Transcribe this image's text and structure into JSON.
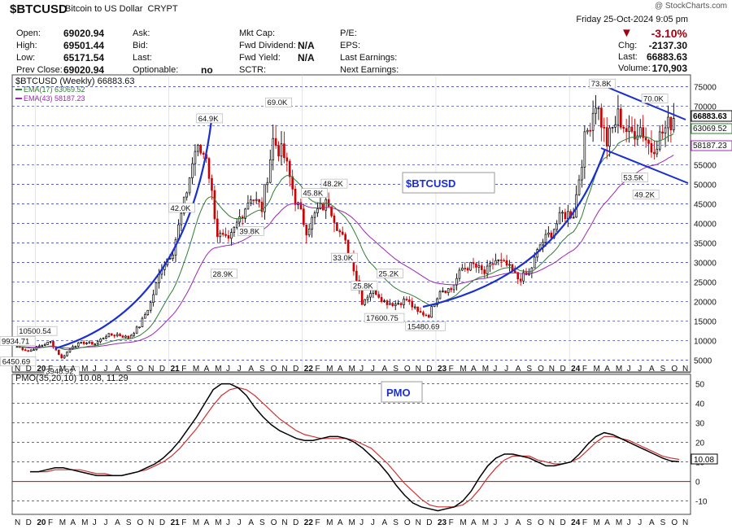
{
  "header": {
    "symbol": "$BTCUSD",
    "description": "Bitcoin to US Dollar",
    "exchange": "CRYPT",
    "brand": "@ StockCharts.com",
    "date": "Friday  25-Oct-2024  9:05 pm",
    "pct_change": "-3.10%",
    "chg_label": "Chg:",
    "chg": "-2137.30",
    "last_label": "Last:",
    "last": "66883.63",
    "volume_label": "Volume:",
    "volume": "170,903"
  },
  "info": {
    "open_label": "Open:",
    "open": "69020.94",
    "high_label": "High:",
    "high": "69501.44",
    "low_label": "Low:",
    "low": "65171.54",
    "prev_label": "Prev Close:",
    "prev": "69020.94",
    "ask_label": "Ask:",
    "bid_label": "Bid:",
    "lastq_label": "Last:",
    "optionable_label": "Optionable:",
    "optionable": "no",
    "mktcap_label": "Mkt Cap:",
    "fwddiv_label": "Fwd Dividend:",
    "fwddiv": "N/A",
    "fwdyield_label": "Fwd Yield:",
    "fwdyield": "N/A",
    "sctr_label": "SCTR:",
    "pe_label": "P/E:",
    "eps_label": "EPS:",
    "lastearn_label": "Last Earnings:",
    "nextearn_label": "Next Earnings:"
  },
  "colors": {
    "up": "#000000",
    "down": "#cc0000",
    "ema17": "#2e7d32",
    "ema43": "#9c27b0",
    "pattern": "#1a2fcf",
    "neg": "#a00010"
  },
  "chart_data": [
    {
      "type": "candlestick",
      "title": "$BTCUSD (Weekly) 66883.63",
      "watermark": "$BTCUSD",
      "y_axis_ticks": [
        5000,
        10000,
        15000,
        20000,
        25000,
        30000,
        35000,
        40000,
        45000,
        50000,
        55000,
        60000,
        65000,
        70000,
        75000
      ],
      "ylim": [
        2000,
        78000
      ],
      "x_labels": [
        "N",
        "D",
        "20",
        "F",
        "M",
        "A",
        "M",
        "J",
        "J",
        "A",
        "S",
        "O",
        "N",
        "D",
        "21",
        "F",
        "M",
        "A",
        "M",
        "J",
        "J",
        "A",
        "S",
        "O",
        "N",
        "D",
        "22",
        "F",
        "M",
        "A",
        "M",
        "J",
        "J",
        "A",
        "S",
        "O",
        "N",
        "D",
        "23",
        "F",
        "M",
        "A",
        "M",
        "J",
        "J",
        "A",
        "S",
        "O",
        "N",
        "D",
        "24",
        "F",
        "M",
        "A",
        "M",
        "J",
        "J",
        "A",
        "S",
        "O",
        "N"
      ],
      "weekly_close_path": [
        [
          "2019-11",
          8500
        ],
        [
          "2019-12",
          7300
        ],
        [
          "2020-01",
          8600
        ],
        [
          "2020-02",
          9700
        ],
        [
          "2020-03",
          5500
        ],
        [
          "2020-04",
          8700
        ],
        [
          "2020-05",
          9500
        ],
        [
          "2020-06",
          9200
        ],
        [
          "2020-07",
          11300
        ],
        [
          "2020-08",
          11600
        ],
        [
          "2020-09",
          10700
        ],
        [
          "2020-10",
          13800
        ],
        [
          "2020-11",
          19600
        ],
        [
          "2020-12",
          29000
        ],
        [
          "2021-01",
          33100
        ],
        [
          "2021-02",
          45100
        ],
        [
          "2021-03",
          58700
        ],
        [
          "2021-04",
          57700
        ],
        [
          "2021-05",
          37300
        ],
        [
          "2021-06",
          35000
        ],
        [
          "2021-07",
          41500
        ],
        [
          "2021-08",
          47100
        ],
        [
          "2021-09",
          43800
        ],
        [
          "2021-10",
          61300
        ],
        [
          "2021-11",
          57000
        ],
        [
          "2021-12",
          46200
        ],
        [
          "2022-01",
          38500
        ],
        [
          "2022-02",
          43200
        ],
        [
          "2022-03",
          45500
        ],
        [
          "2022-04",
          37700
        ],
        [
          "2022-05",
          31800
        ],
        [
          "2022-06",
          19900
        ],
        [
          "2022-07",
          23300
        ],
        [
          "2022-08",
          20000
        ],
        [
          "2022-09",
          19400
        ],
        [
          "2022-10",
          20500
        ],
        [
          "2022-11",
          17200
        ],
        [
          "2022-12",
          16550
        ],
        [
          "2023-01",
          23100
        ],
        [
          "2023-02",
          23150
        ],
        [
          "2023-03",
          28500
        ],
        [
          "2023-04",
          29300
        ],
        [
          "2023-05",
          27200
        ],
        [
          "2023-06",
          30500
        ],
        [
          "2023-07",
          29200
        ],
        [
          "2023-08",
          25900
        ],
        [
          "2023-09",
          27000
        ],
        [
          "2023-10",
          34500
        ],
        [
          "2023-11",
          37700
        ],
        [
          "2023-12",
          42300
        ],
        [
          "2024-01",
          42600
        ],
        [
          "2024-02",
          61200
        ],
        [
          "2024-03",
          71300
        ],
        [
          "2024-04",
          60700
        ],
        [
          "2024-05",
          67500
        ],
        [
          "2024-06",
          62700
        ],
        [
          "2024-07",
          64600
        ],
        [
          "2024-08",
          59000
        ],
        [
          "2024-09",
          63300
        ],
        [
          "2024-10",
          66883.63
        ]
      ],
      "annotations": [
        {
          "text": "9934.71"
        },
        {
          "text": "6450.69"
        },
        {
          "text": "10500.54"
        },
        {
          "text": "3948.92"
        },
        {
          "text": "42.0K"
        },
        {
          "text": "64.9K"
        },
        {
          "text": "28.9K"
        },
        {
          "text": "39.8K"
        },
        {
          "text": "69.0K"
        },
        {
          "text": "45.8K"
        },
        {
          "text": "48.2K"
        },
        {
          "text": "33.0K"
        },
        {
          "text": "25.8K"
        },
        {
          "text": "25.2K"
        },
        {
          "text": "17600.75"
        },
        {
          "text": "15480.69"
        },
        {
          "text": "73.8K"
        },
        {
          "text": "70.0K"
        },
        {
          "text": "53.5K"
        },
        {
          "text": "49.2K"
        }
      ],
      "series": [
        {
          "name": "EMA(17) 63069.52",
          "last_value": "63069.52"
        },
        {
          "name": "EMA(43) 58187.23",
          "last_value": "58187.23"
        }
      ],
      "price_tag": "66883.63"
    },
    {
      "type": "line",
      "title": "PMO(35,20,10) 10.08, 11.29",
      "watermark": "PMO",
      "y_axis_ticks": [
        -10,
        0,
        10,
        20,
        30,
        40,
        50
      ],
      "ylim": [
        -16,
        54
      ],
      "value_tag": "10.08",
      "series": [
        {
          "name": "PMO",
          "values": [
            5,
            5,
            6,
            7,
            7,
            6,
            5,
            4,
            3,
            3,
            3,
            3,
            4,
            5,
            7,
            9,
            12,
            16,
            21,
            27,
            33,
            40,
            47,
            50,
            50,
            48,
            44,
            38,
            33,
            29,
            26,
            24,
            22,
            21,
            21,
            22,
            23,
            23,
            22,
            20,
            17,
            13,
            9,
            4,
            -2,
            -7,
            -11,
            -13,
            -14,
            -15,
            -14,
            -13,
            -10,
            -5,
            2,
            8,
            12,
            14,
            14,
            13,
            12,
            10,
            8,
            8,
            9,
            10,
            14,
            19,
            23,
            25,
            24,
            22,
            20,
            18,
            16,
            14,
            12,
            10.5,
            10.08
          ]
        },
        {
          "name": "Signal",
          "values": [
            5,
            5,
            5,
            6,
            6,
            6,
            6,
            5,
            4,
            4,
            3,
            3,
            4,
            5,
            6,
            8,
            10,
            13,
            17,
            22,
            27,
            33,
            39,
            44,
            47,
            48,
            47,
            44,
            40,
            36,
            32,
            29,
            26,
            24,
            23,
            22,
            22,
            22,
            22,
            21,
            19,
            17,
            13,
            9,
            4,
            -1,
            -5,
            -9,
            -12,
            -13,
            -13,
            -13,
            -12,
            -9,
            -4,
            2,
            7,
            11,
            13,
            13,
            13,
            11,
            10,
            9,
            9,
            10,
            12,
            16,
            20,
            23,
            23,
            22,
            21,
            19,
            17,
            15,
            13,
            12,
            11.29
          ]
        }
      ]
    }
  ]
}
